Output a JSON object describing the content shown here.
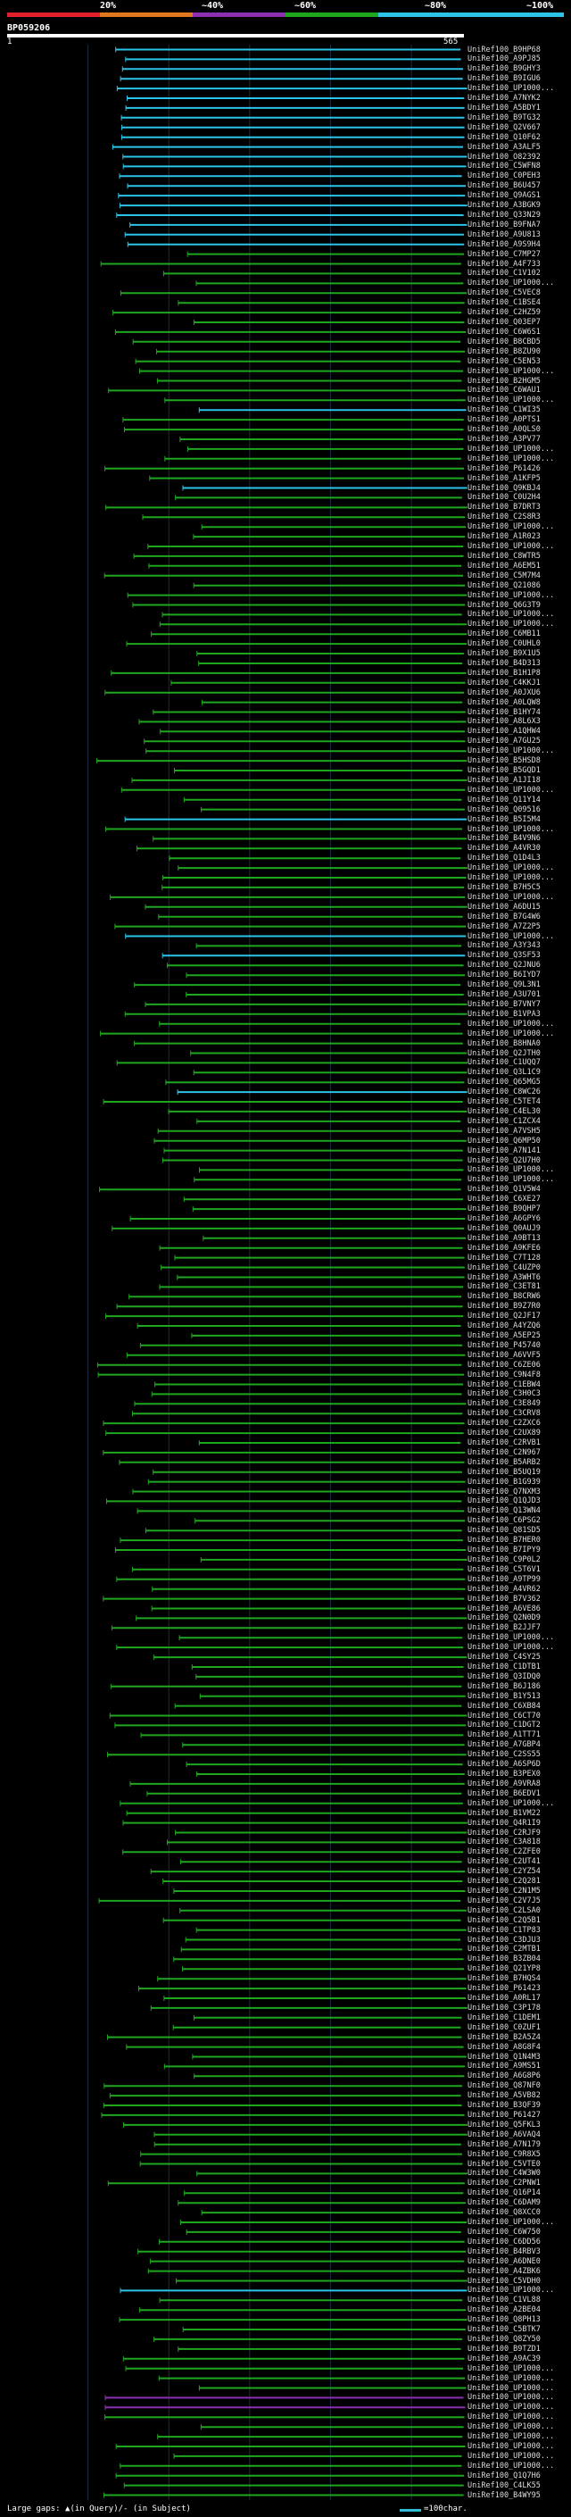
{
  "legend": {
    "labels": [
      "20%",
      "~40%",
      "~60%",
      "~80%",
      "~100%"
    ],
    "colors": [
      "#e0202a",
      "#e0781e",
      "#8a2fb0",
      "#1fa61f",
      "#2cc3e8"
    ]
  },
  "query": {
    "id": "BP059206",
    "start_label": "1",
    "end_label": "565",
    "length": 565
  },
  "hits": [
    "UniRef100_B9HP68",
    "UniRef100_A9PJ85",
    "UniRef100_B9GHY3",
    "UniRef100_B9IGU6",
    "UniRef100_UP1000...",
    "UniRef100_A7NYK2",
    "UniRef100_A5BDY1",
    "UniRef100_B9TG32",
    "UniRef100_Q2V667",
    "UniRef100_Q10F62",
    "UniRef100_A3ALF5",
    "UniRef100_O82392",
    "UniRef100_C5WFN8",
    "UniRef100_C0PEH3",
    "UniRef100_B6U457",
    "UniRef100_Q9AGS1",
    "UniRef100_A3BGK9",
    "UniRef100_Q33N29",
    "UniRef100_B9FNA7",
    "UniRef100_A9U813",
    "UniRef100_A9S9H4",
    "UniRef100_C7MP27",
    "UniRef100_A4F733",
    "UniRef100_C1V102",
    "UniRef100_UP1000...",
    "UniRef100_C5VEC8",
    "UniRef100_C1BSE4",
    "UniRef100_C2HZ59",
    "UniRef100_Q03EP7",
    "UniRef100_C6W6S1",
    "UniRef100_B8CBD5",
    "UniRef100_B8ZU90",
    "UniRef100_C5EN53",
    "UniRef100_UP1000...",
    "UniRef100_B2HGM5",
    "UniRef100_C6WAU1",
    "UniRef100_UP1000...",
    "UniRef100_C1WI35",
    "UniRef100_A0PTS1",
    "UniRef100_A0QLS0",
    "UniRef100_A3PV77",
    "UniRef100_UP1000...",
    "UniRef100_UP1000...",
    "UniRef100_P61426",
    "UniRef100_A1KFP5",
    "UniRef100_Q9KBJ4",
    "UniRef100_C0U2H4",
    "UniRef100_B7DRT3",
    "UniRef100_C2S8R3",
    "UniRef100_UP1000...",
    "UniRef100_A1R023",
    "UniRef100_UP1000...",
    "UniRef100_C8WTR5",
    "UniRef100_A6EM51",
    "UniRef100_C5M7M4",
    "UniRef100_Q21086",
    "UniRef100_UP1000...",
    "UniRef100_Q6G3T9",
    "UniRef100_UP1000...",
    "UniRef100_UP1000...",
    "UniRef100_C6MB11",
    "UniRef100_C0UHL0",
    "UniRef100_B9X1U5",
    "UniRef100_B4D313",
    "UniRef100_B1H1P8",
    "UniRef100_C4KKJ1",
    "UniRef100_A0JXU6",
    "UniRef100_A0LQW8",
    "UniRef100_B1HY74",
    "UniRef100_A8L6X3",
    "UniRef100_A1QHW4",
    "UniRef100_A7GU25",
    "UniRef100_UP1000...",
    "UniRef100_B5HSD8",
    "UniRef100_B5GQD1",
    "UniRef100_A1JI18",
    "UniRef100_UP1000...",
    "UniRef100_Q11Y14",
    "UniRef100_Q09516",
    "UniRef100_B5I5M4",
    "UniRef100_UP1000...",
    "UniRef100_B4V9N6",
    "UniRef100_A4VR30",
    "UniRef100_Q1D4L3",
    "UniRef100_UP1000...",
    "UniRef100_UP1000...",
    "UniRef100_B7H5C5",
    "UniRef100_UP1000...",
    "UniRef100_A6DU15",
    "UniRef100_B7G4W6",
    "UniRef100_A7Z2P5",
    "UniRef100_UP1000...",
    "UniRef100_A3Y343",
    "UniRef100_Q3SF53",
    "UniRef100_Q2JNU6",
    "UniRef100_B6IYD7",
    "UniRef100_Q9L3N1",
    "UniRef100_A3U701",
    "UniRef100_B7VNY7",
    "UniRef100_B1VPA3",
    "UniRef100_UP1000...",
    "UniRef100_UP1000...",
    "UniRef100_B8HNA0",
    "UniRef100_Q2JTH0",
    "UniRef100_C1UQQ7",
    "UniRef100_Q3L1C9",
    "UniRef100_Q65MG5",
    "UniRef100_C8WC26",
    "UniRef100_C5TET4",
    "UniRef100_C4EL30",
    "UniRef100_C1ZCX4",
    "UniRef100_A7VSH5",
    "UniRef100_Q6MP50",
    "UniRef100_A7N141",
    "UniRef100_Q2U7H0",
    "UniRef100_UP1000...",
    "UniRef100_UP1000...",
    "UniRef100_Q1V5W4",
    "UniRef100_C6XE27",
    "UniRef100_B9QHP7",
    "UniRef100_A6GPY6",
    "UniRef100_Q0AUJ9",
    "UniRef100_A9BT13",
    "UniRef100_A9KFE6",
    "UniRef100_C7T128",
    "UniRef100_C4UZP0",
    "UniRef100_A3WHT6",
    "UniRef100_C3ET81",
    "UniRef100_B8CRW6",
    "UniRef100_B9Z7R0",
    "UniRef100_Q2JF17",
    "UniRef100_A4YZQ6",
    "UniRef100_A5EP25",
    "UniRef100_P45740",
    "UniRef100_A6VVF5",
    "UniRef100_C6ZE06",
    "UniRef100_C9N4F8",
    "UniRef100_C1EBW4",
    "UniRef100_C3H0C3",
    "UniRef100_C3E849",
    "UniRef100_C3CRV8",
    "UniRef100_C2ZXC6",
    "UniRef100_C2UX89",
    "UniRef100_C2RVB1",
    "UniRef100_C2N967",
    "UniRef100_B5ARB2",
    "UniRef100_B5UQ19",
    "UniRef100_B1G939",
    "UniRef100_Q7NXM3",
    "UniRef100_Q1QJD3",
    "UniRef100_Q13WN4",
    "UniRef100_C6PSG2",
    "UniRef100_Q81SD5",
    "UniRef100_B7HER0",
    "UniRef100_B7IPY9",
    "UniRef100_C9P0L2",
    "UniRef100_C5T6V1",
    "UniRef100_A9TP99",
    "UniRef100_A4VR62",
    "UniRef100_B7V362",
    "UniRef100_A6VE86",
    "UniRef100_Q2N0D9",
    "UniRef100_B2JJF7",
    "UniRef100_UP1000...",
    "UniRef100_UP1000...",
    "UniRef100_C4SY25",
    "UniRef100_C1DTB1",
    "UniRef100_Q3IDQ0",
    "UniRef100_B6J186",
    "UniRef100_B1Y513",
    "UniRef100_C6XB84",
    "UniRef100_C6CT70",
    "UniRef100_C1DGT2",
    "UniRef100_A1TT71",
    "UniRef100_A7GBP4",
    "UniRef100_C2SS55",
    "UniRef100_A6SP6D",
    "UniRef100_B3PEX0",
    "UniRef100_A9VRA8",
    "UniRef100_B6EDV1",
    "UniRef100_UP1000...",
    "UniRef100_B1VM22",
    "UniRef100_Q4R1I9",
    "UniRef100_C2RJF9",
    "UniRef100_C3A818",
    "UniRef100_C2ZFE0",
    "UniRef100_C2UT41",
    "UniRef100_C2YZ54",
    "UniRef100_C2Q281",
    "UniRef100_C2N1M5",
    "UniRef100_C2V7J5",
    "UniRef100_C2LSA0",
    "UniRef100_C2Q5B1",
    "UniRef100_C1TP83",
    "UniRef100_C3DJU3",
    "UniRef100_C2MTB1",
    "UniRef100_B3ZB04",
    "UniRef100_Q21YP8",
    "UniRef100_B7HQS4",
    "UniRef100_P61423",
    "UniRef100_A0RL17",
    "UniRef100_C3P178",
    "UniRef100_C1DEM1",
    "UniRef100_C0ZUF1",
    "UniRef100_B2A5Z4",
    "UniRef100_A8G8F4",
    "UniRef100_Q1N4M3",
    "UniRef100_A9MS51",
    "UniRef100_A6G8P6",
    "UniRef100_Q87NF0",
    "UniRef100_A5VB82",
    "UniRef100_B3QF39",
    "UniRef100_P61427",
    "UniRef100_Q5FKL3",
    "UniRef100_A6VAQ4",
    "UniRef100_A7N179",
    "UniRef100_C9R8X5",
    "UniRef100_C5VTE0",
    "UniRef100_C4W3W0",
    "UniRef100_C2PNW1",
    "UniRef100_Q16P14",
    "UniRef100_C6DAM9",
    "UniRef100_Q8XCC0",
    "UniRef100_UP1000...",
    "UniRef100_C6W750",
    "UniRef100_C6DD56",
    "UniRef100_B4RBV3",
    "UniRef100_A6DNE0",
    "UniRef100_A4ZBK6",
    "UniRef100_C5VDH0",
    "UniRef100_UP1000...",
    "UniRef100_C1VL88",
    "UniRef100_A2BE04",
    "UniRef100_Q8PH13",
    "UniRef100_C5BTK7",
    "UniRef100_Q8ZY50",
    "UniRef100_B9TZD1",
    "UniRef100_A9AC39",
    "UniRef100_UP1000...",
    "UniRef100_UP1000...",
    "UniRef100_UP1000...",
    "UniRef100_UP1000...",
    "UniRef100_UP1000...",
    "UniRef100_UP1000...",
    "UniRef100_UP1000...",
    "UniRef100_UP1000...",
    "UniRef100_UP1000...",
    "UniRef100_UP1000...",
    "UniRef100_UP1000...",
    "UniRef100_Q1Q7H6",
    "UniRef100_C4LK55",
    "UniRef100_B4WY95"
  ],
  "footer": {
    "key": "Large gaps: ▲(in Query)/- (in Subject)",
    "scale": "=100char."
  }
}
